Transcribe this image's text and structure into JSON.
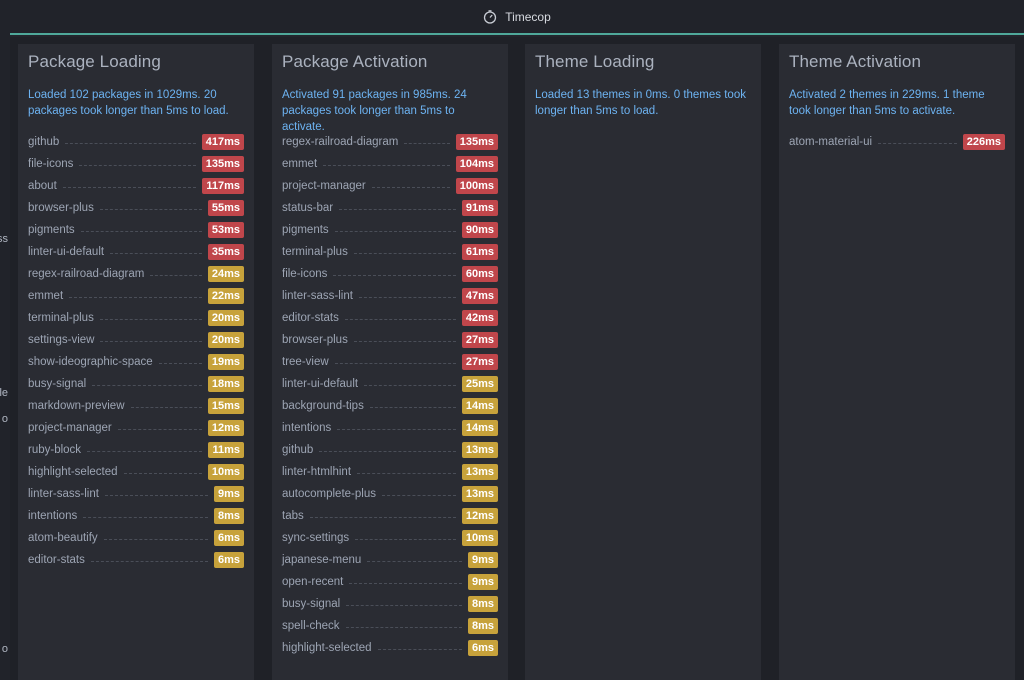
{
  "window": {
    "tab_title": "Timecop",
    "tab_icon": "stopwatch-icon"
  },
  "left_edge": {
    "fragments": [
      "ss",
      "le",
      "o",
      "o"
    ]
  },
  "colors": {
    "slow": "#c0464b",
    "medium": "#c7a23b",
    "accent": "#4fa89a",
    "summary_text": "#6db3f2"
  },
  "panes": [
    {
      "title": "Package Loading",
      "summary": "Loaded 102 packages in 1029ms. 20 packages took longer than 5ms to load.",
      "rows": [
        {
          "name": "github",
          "time": "417ms",
          "level": "red"
        },
        {
          "name": "file-icons",
          "time": "135ms",
          "level": "red"
        },
        {
          "name": "about",
          "time": "117ms",
          "level": "red"
        },
        {
          "name": "browser-plus",
          "time": "55ms",
          "level": "red"
        },
        {
          "name": "pigments",
          "time": "53ms",
          "level": "red"
        },
        {
          "name": "linter-ui-default",
          "time": "35ms",
          "level": "red"
        },
        {
          "name": "regex-railroad-diagram",
          "time": "24ms",
          "level": "yellow"
        },
        {
          "name": "emmet",
          "time": "22ms",
          "level": "yellow"
        },
        {
          "name": "terminal-plus",
          "time": "20ms",
          "level": "yellow"
        },
        {
          "name": "settings-view",
          "time": "20ms",
          "level": "yellow"
        },
        {
          "name": "show-ideographic-space",
          "time": "19ms",
          "level": "yellow"
        },
        {
          "name": "busy-signal",
          "time": "18ms",
          "level": "yellow"
        },
        {
          "name": "markdown-preview",
          "time": "15ms",
          "level": "yellow"
        },
        {
          "name": "project-manager",
          "time": "12ms",
          "level": "yellow"
        },
        {
          "name": "ruby-block",
          "time": "11ms",
          "level": "yellow"
        },
        {
          "name": "highlight-selected",
          "time": "10ms",
          "level": "yellow"
        },
        {
          "name": "linter-sass-lint",
          "time": "9ms",
          "level": "yellow"
        },
        {
          "name": "intentions",
          "time": "8ms",
          "level": "yellow"
        },
        {
          "name": "atom-beautify",
          "time": "6ms",
          "level": "yellow"
        },
        {
          "name": "editor-stats",
          "time": "6ms",
          "level": "yellow"
        }
      ]
    },
    {
      "title": "Package Activation",
      "summary": "Activated 91 packages in 985ms. 24 packages took longer than 5ms to activate.",
      "rows": [
        {
          "name": "regex-railroad-diagram",
          "time": "135ms",
          "level": "red"
        },
        {
          "name": "emmet",
          "time": "104ms",
          "level": "red"
        },
        {
          "name": "project-manager",
          "time": "100ms",
          "level": "red"
        },
        {
          "name": "status-bar",
          "time": "91ms",
          "level": "red"
        },
        {
          "name": "pigments",
          "time": "90ms",
          "level": "red"
        },
        {
          "name": "terminal-plus",
          "time": "61ms",
          "level": "red"
        },
        {
          "name": "file-icons",
          "time": "60ms",
          "level": "red"
        },
        {
          "name": "linter-sass-lint",
          "time": "47ms",
          "level": "red"
        },
        {
          "name": "editor-stats",
          "time": "42ms",
          "level": "red"
        },
        {
          "name": "browser-plus",
          "time": "27ms",
          "level": "red"
        },
        {
          "name": "tree-view",
          "time": "27ms",
          "level": "red"
        },
        {
          "name": "linter-ui-default",
          "time": "25ms",
          "level": "yellow"
        },
        {
          "name": "background-tips",
          "time": "14ms",
          "level": "yellow"
        },
        {
          "name": "intentions",
          "time": "14ms",
          "level": "yellow"
        },
        {
          "name": "github",
          "time": "13ms",
          "level": "yellow"
        },
        {
          "name": "linter-htmlhint",
          "time": "13ms",
          "level": "yellow"
        },
        {
          "name": "autocomplete-plus",
          "time": "13ms",
          "level": "yellow"
        },
        {
          "name": "tabs",
          "time": "12ms",
          "level": "yellow"
        },
        {
          "name": "sync-settings",
          "time": "10ms",
          "level": "yellow"
        },
        {
          "name": "japanese-menu",
          "time": "9ms",
          "level": "yellow"
        },
        {
          "name": "open-recent",
          "time": "9ms",
          "level": "yellow"
        },
        {
          "name": "busy-signal",
          "time": "8ms",
          "level": "yellow"
        },
        {
          "name": "spell-check",
          "time": "8ms",
          "level": "yellow"
        },
        {
          "name": "highlight-selected",
          "time": "6ms",
          "level": "yellow"
        }
      ]
    },
    {
      "title": "Theme Loading",
      "summary": "Loaded 13 themes in 0ms. 0 themes took longer than 5ms to load.",
      "rows": []
    },
    {
      "title": "Theme Activation",
      "summary": "Activated 2 themes in 229ms. 1 theme took longer than 5ms to activate.",
      "rows": [
        {
          "name": "atom-material-ui",
          "time": "226ms",
          "level": "red"
        }
      ]
    }
  ]
}
